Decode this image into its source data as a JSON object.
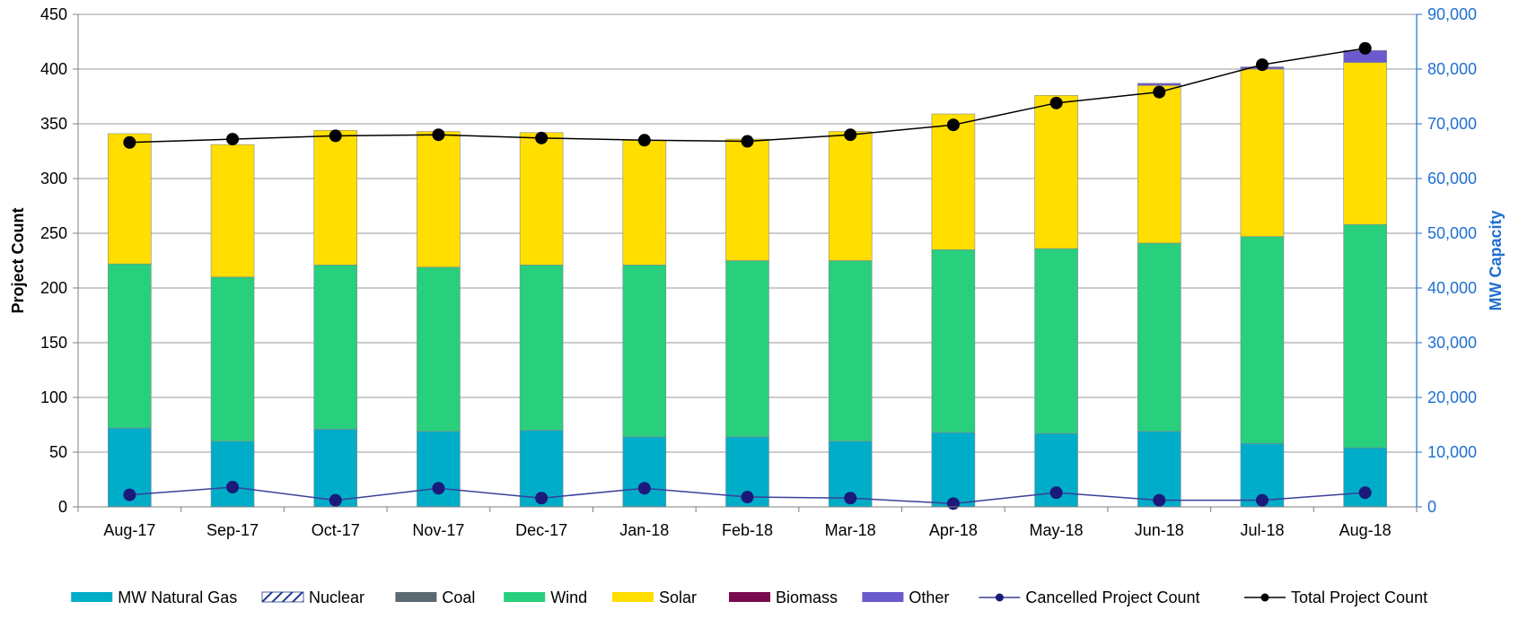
{
  "chart_data": {
    "type": "bar",
    "subtype": "stacked-bar-with-lines",
    "title": "",
    "xlabel": "",
    "ylabel_left": "Project Count",
    "ylabel_right": "MW Capacity",
    "categories": [
      "Aug-17",
      "Sep-17",
      "Oct-17",
      "Nov-17",
      "Dec-17",
      "Jan-18",
      "Feb-18",
      "Mar-18",
      "Apr-18",
      "May-18",
      "Jun-18",
      "Jul-18",
      "Aug-18"
    ],
    "ylim_left": [
      0,
      450
    ],
    "ylim_right": [
      0,
      90000
    ],
    "yticks_left": [
      0,
      50,
      100,
      150,
      200,
      250,
      300,
      350,
      400,
      450
    ],
    "yticks_right": [
      0,
      10000,
      20000,
      30000,
      40000,
      50000,
      60000,
      70000,
      80000,
      90000
    ],
    "ytick_labels_left": [
      "0",
      "50",
      "100",
      "150",
      "200",
      "250",
      "300",
      "350",
      "400",
      "450"
    ],
    "ytick_labels_right": [
      "0",
      "10,000",
      "20,000",
      "30,000",
      "40,000",
      "50,000",
      "60,000",
      "70,000",
      "80,000",
      "90,000"
    ],
    "grid": true,
    "legend_position": "bottom",
    "bar_series": [
      {
        "name": "MW Natural Gas",
        "color": "#00adc8",
        "axis": "right",
        "values": [
          14400,
          12000,
          14200,
          13800,
          14000,
          12800,
          12800,
          12000,
          13600,
          13400,
          13800,
          11600,
          10800
        ]
      },
      {
        "name": "Nuclear",
        "color": "#1f3b8f",
        "pattern": "hatched",
        "axis": "right",
        "values": [
          0,
          0,
          0,
          0,
          0,
          0,
          0,
          0,
          0,
          0,
          0,
          0,
          0
        ]
      },
      {
        "name": "Coal",
        "color": "#5a6a72",
        "axis": "right",
        "values": [
          0,
          0,
          0,
          0,
          0,
          0,
          0,
          0,
          0,
          0,
          0,
          0,
          0
        ]
      },
      {
        "name": "Wind",
        "color": "#28cf7c",
        "axis": "right",
        "values": [
          30000,
          30000,
          30000,
          30000,
          30200,
          31400,
          32200,
          33000,
          33400,
          33800,
          34400,
          37800,
          40800
        ]
      },
      {
        "name": "Solar",
        "color": "#ffde00",
        "axis": "right",
        "values": [
          23800,
          24200,
          24600,
          24800,
          24200,
          22800,
          22200,
          23600,
          24800,
          28000,
          28800,
          30600,
          29600
        ]
      },
      {
        "name": "Biomass",
        "color": "#7a0a4f",
        "axis": "right",
        "values": [
          0,
          0,
          0,
          0,
          0,
          0,
          0,
          0,
          0,
          0,
          0,
          0,
          0
        ]
      },
      {
        "name": "Other",
        "color": "#6a5acd",
        "axis": "right",
        "values": [
          0,
          0,
          0,
          0,
          0,
          0,
          0,
          0,
          0,
          0,
          400,
          400,
          2200
        ]
      }
    ],
    "line_series": [
      {
        "name": "Cancelled Project Count",
        "line_color": "#3b3f9a",
        "marker_color": "#1b1a7a",
        "axis": "left",
        "values": [
          11,
          18,
          6,
          17,
          8,
          17,
          9,
          8,
          3,
          13,
          6,
          6,
          13
        ]
      },
      {
        "name": "Total Project Count",
        "line_color": "#000000",
        "marker_color": "#000000",
        "axis": "left",
        "values": [
          333,
          336,
          339,
          340,
          337,
          335,
          334,
          340,
          349,
          369,
          379,
          404,
          419
        ]
      }
    ]
  }
}
